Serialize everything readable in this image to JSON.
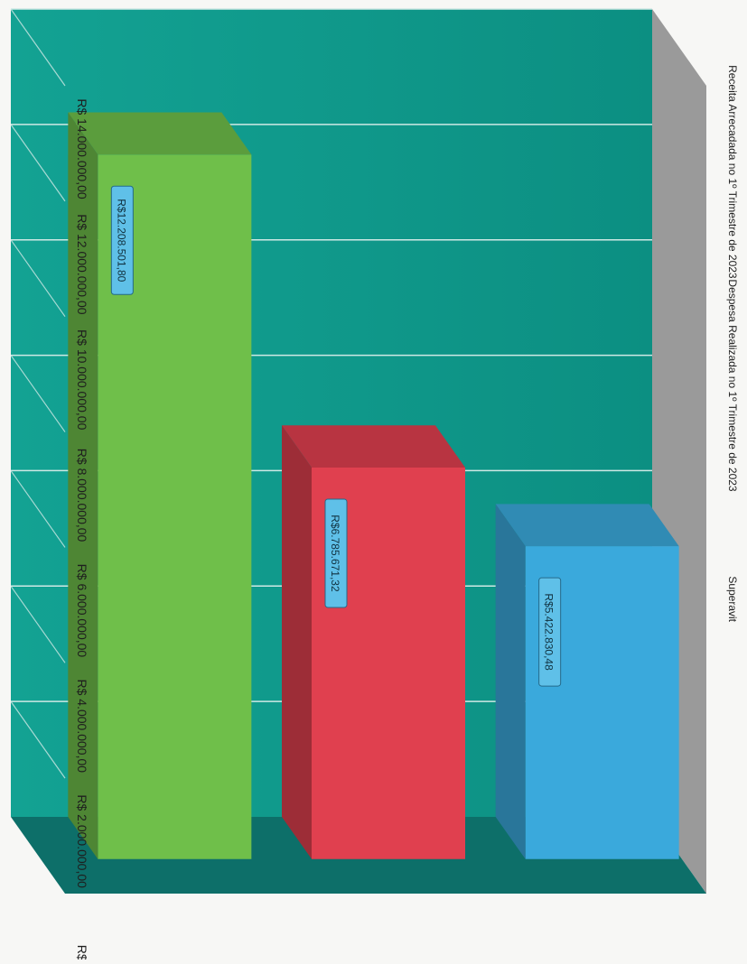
{
  "chart_data": {
    "type": "bar",
    "orientation": "rotated-90-clockwise",
    "style": "3d-column",
    "categories": [
      "Receita Arrecadada no 1º Trimestre de  2023",
      "Despesa Realizada no 1º Trimestre de  2023",
      "Superavit"
    ],
    "values": [
      12208501.8,
      6785671.32,
      5422830.48
    ],
    "data_labels": [
      "R$12.208.501,80",
      "R$6.785.671,32",
      "R$5.422.830,48"
    ],
    "bar_colors": [
      "#6fbf4a",
      "#e0404f",
      "#3aa9dc"
    ],
    "ylim": [
      0,
      14000000
    ],
    "y_ticks": [
      {
        "value": 0,
        "label": "R$ -"
      },
      {
        "value": 2000000,
        "label": "R$ 2.000.000,00"
      },
      {
        "value": 4000000,
        "label": "R$ 4.000.000,00"
      },
      {
        "value": 6000000,
        "label": "R$ 6.000.000,00"
      },
      {
        "value": 8000000,
        "label": "R$ 8.000.000,00"
      },
      {
        "value": 10000000,
        "label": "R$ 10.000.000,00"
      },
      {
        "value": 12000000,
        "label": "R$ 12.000.000,00"
      },
      {
        "value": 14000000,
        "label": "R$ 14.000.000,00"
      }
    ],
    "grid": true,
    "legend": "none",
    "background_color": "#0f9a8c"
  }
}
